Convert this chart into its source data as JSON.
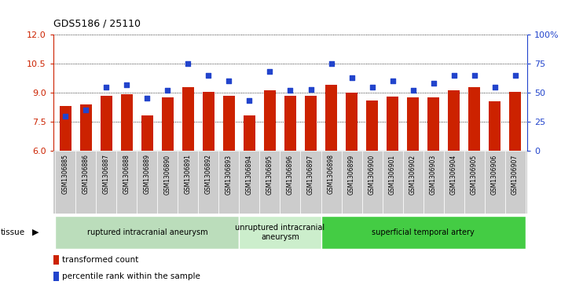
{
  "title": "GDS5186 / 25110",
  "samples": [
    "GSM1306885",
    "GSM1306886",
    "GSM1306887",
    "GSM1306888",
    "GSM1306889",
    "GSM1306890",
    "GSM1306891",
    "GSM1306892",
    "GSM1306893",
    "GSM1306894",
    "GSM1306895",
    "GSM1306896",
    "GSM1306897",
    "GSM1306898",
    "GSM1306899",
    "GSM1306900",
    "GSM1306901",
    "GSM1306902",
    "GSM1306903",
    "GSM1306904",
    "GSM1306905",
    "GSM1306906",
    "GSM1306907"
  ],
  "bar_values": [
    8.3,
    8.4,
    8.85,
    8.9,
    7.85,
    8.75,
    9.3,
    9.05,
    8.85,
    7.85,
    9.1,
    8.85,
    8.85,
    9.4,
    9.0,
    8.6,
    8.8,
    8.75,
    8.75,
    9.1,
    9.3,
    8.55,
    9.05
  ],
  "percentile_values": [
    30,
    35,
    55,
    57,
    45,
    52,
    75,
    65,
    60,
    43,
    68,
    52,
    53,
    75,
    63,
    55,
    60,
    52,
    58,
    65,
    65,
    55,
    65
  ],
  "ylim_left": [
    6,
    12
  ],
  "ylim_right": [
    0,
    100
  ],
  "yticks_left": [
    6,
    7.5,
    9,
    10.5,
    12
  ],
  "yticks_right": [
    0,
    25,
    50,
    75,
    100
  ],
  "ytick_labels_right": [
    "0",
    "25",
    "50",
    "75",
    "100%"
  ],
  "bar_color": "#cc2200",
  "dot_color": "#2244cc",
  "bg_plot": "#ffffff",
  "bg_xtick": "#cccccc",
  "tissue_groups": [
    {
      "label": "ruptured intracranial aneurysm",
      "start": 0,
      "end": 9,
      "color": "#bbddbb"
    },
    {
      "label": "unruptured intracranial\naneurysm",
      "start": 9,
      "end": 13,
      "color": "#cceecc"
    },
    {
      "label": "superficial temporal artery",
      "start": 13,
      "end": 23,
      "color": "#44cc44"
    }
  ],
  "legend_bar_label": "transformed count",
  "legend_dot_label": "percentile rank within the sample",
  "tissue_label": "tissue",
  "figsize": [
    7.14,
    3.63
  ],
  "dpi": 100
}
